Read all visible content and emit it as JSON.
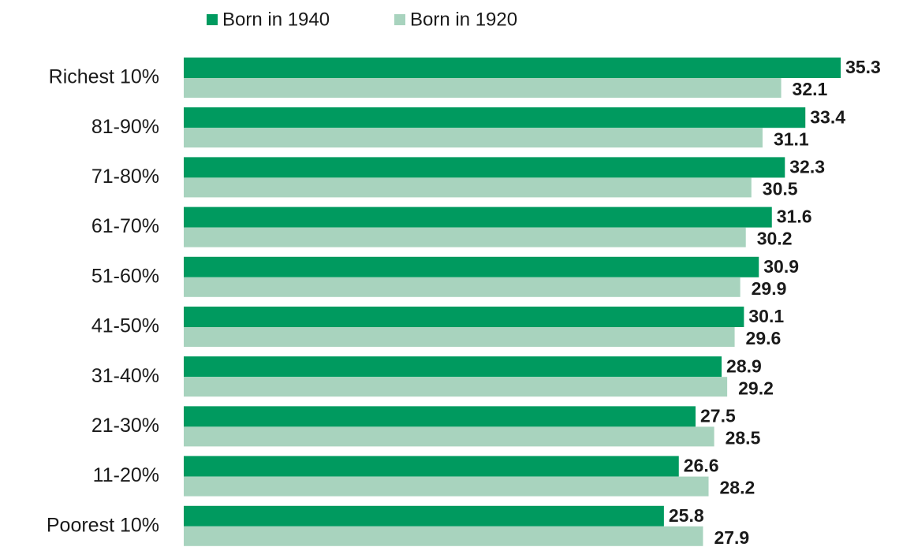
{
  "chart_data": {
    "type": "bar",
    "orientation": "horizontal",
    "categories": [
      "Richest 10%",
      "81-90%",
      "71-80%",
      "61-70%",
      "51-60%",
      "41-50%",
      "31-40%",
      "21-30%",
      "11-20%",
      "Poorest 10%"
    ],
    "series": [
      {
        "name": "Born in 1940",
        "color": "#009a5f",
        "values": [
          35.3,
          33.4,
          32.3,
          31.6,
          30.9,
          30.1,
          28.9,
          27.5,
          26.6,
          25.8
        ]
      },
      {
        "name": "Born in 1920",
        "color": "#a8d3be",
        "values": [
          32.1,
          31.1,
          30.5,
          30.2,
          29.9,
          29.6,
          29.2,
          28.5,
          28.2,
          27.9
        ]
      }
    ],
    "xlim": [
      0,
      36
    ],
    "legend": "top"
  }
}
